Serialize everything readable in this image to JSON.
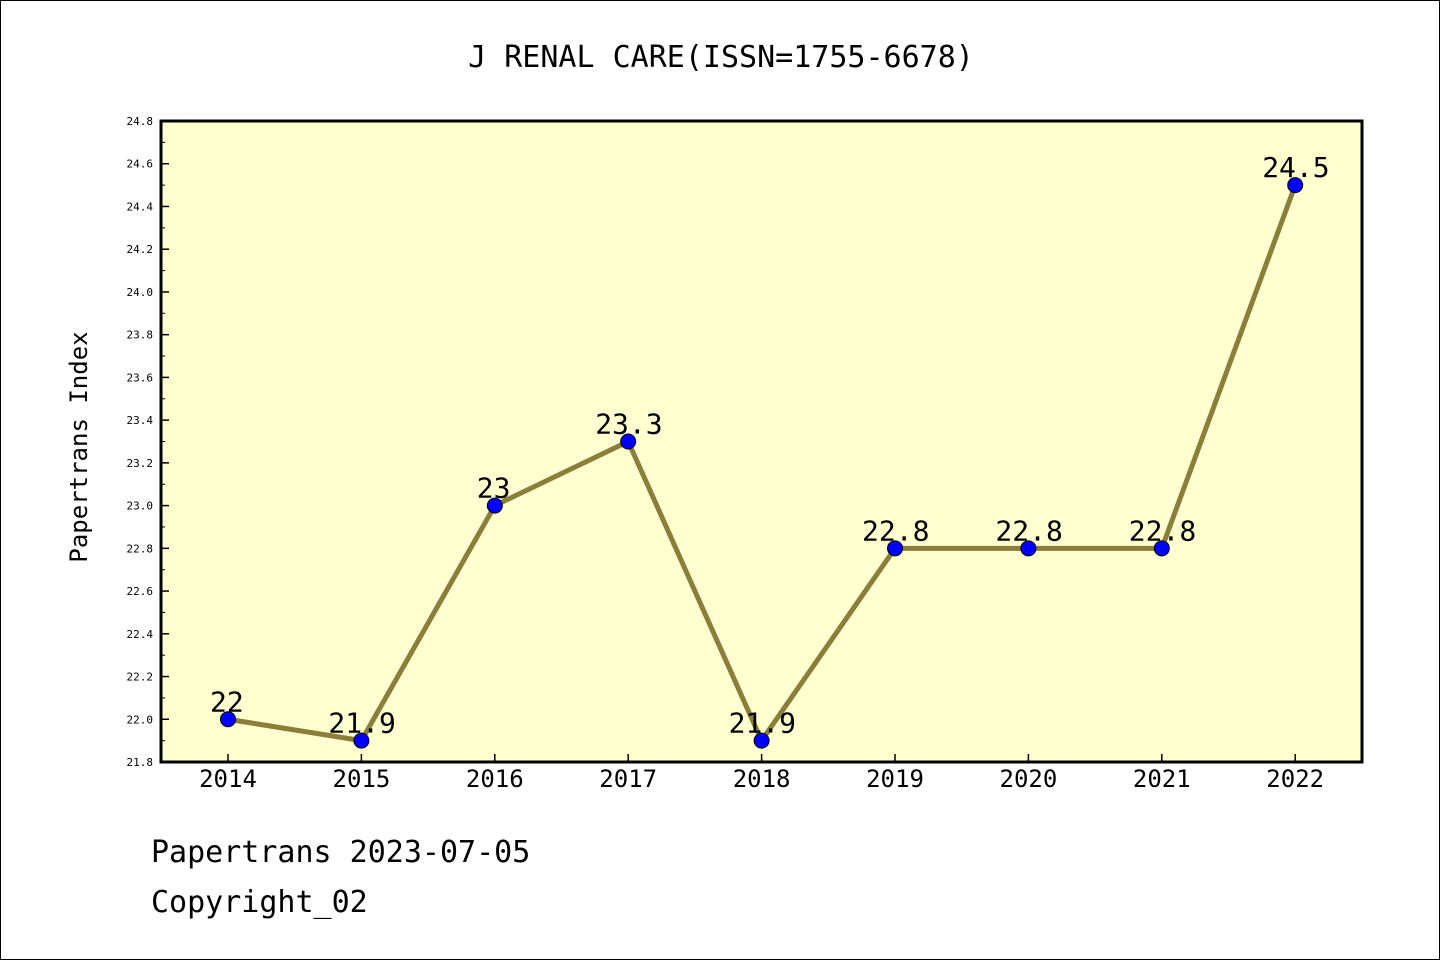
{
  "colors": {
    "plot_background": "#FFFFD0",
    "line": "#8B7D3A",
    "marker": "#0000FF",
    "axis": "#000000",
    "text": "#000000"
  },
  "chart_data": {
    "type": "line",
    "title": "J RENAL CARE(ISSN=1755-6678)",
    "xlabel": "",
    "ylabel": "Papertrans Index",
    "categories": [
      "2014",
      "2015",
      "2016",
      "2017",
      "2018",
      "2019",
      "2020",
      "2021",
      "2022"
    ],
    "series": [
      {
        "values": [
          22,
          21.9,
          23,
          23.3,
          21.9,
          22.8,
          22.8,
          22.8,
          24.5
        ],
        "data_labels": [
          "22",
          "21.9",
          "23",
          "23.3",
          "21.9",
          "22.8",
          "22.8",
          "22.8",
          "24.5"
        ]
      }
    ],
    "ylim": [
      21.8,
      24.8
    ],
    "yticks": [
      "21.8",
      "22.0",
      "22.2",
      "22.4",
      "22.6",
      "22.8",
      "23.0",
      "23.2",
      "23.4",
      "23.6",
      "23.8",
      "24.0",
      "24.2",
      "24.4",
      "24.6",
      "24.8"
    ],
    "grid": false,
    "legend": "none"
  },
  "footer": {
    "line1": "Papertrans 2023-07-05",
    "line2": "Copyright_02"
  }
}
